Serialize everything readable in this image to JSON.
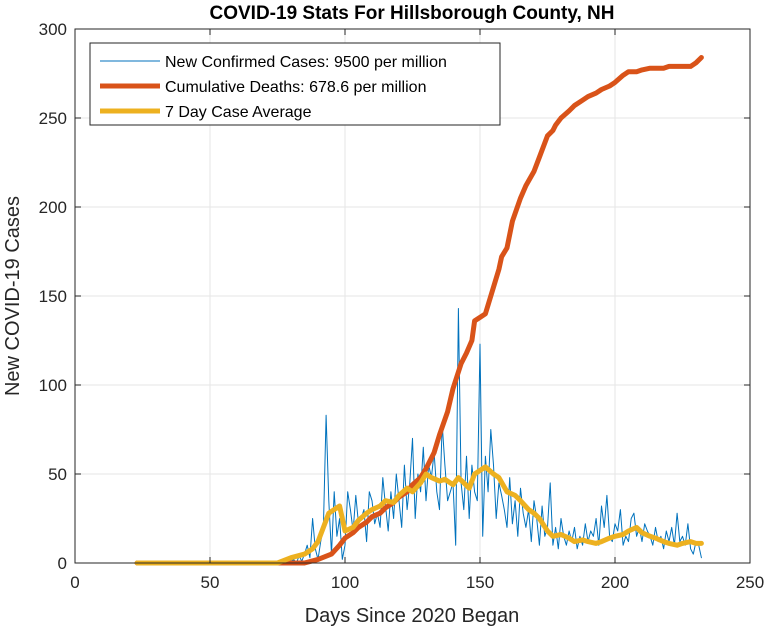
{
  "chart_data": {
    "type": "line",
    "title": "COVID-19 Stats For Hillsborough County, NH",
    "xlabel": "Days Since 2020 Began",
    "ylabel": "New COVID-19 Cases",
    "xlim": [
      0,
      250
    ],
    "ylim": [
      0,
      300
    ],
    "xticks": [
      0,
      50,
      100,
      150,
      200,
      250
    ],
    "yticks": [
      0,
      50,
      100,
      150,
      200,
      250,
      300
    ],
    "grid": true,
    "legend_position": "top-left",
    "series": [
      {
        "name": "New Confirmed Cases: 9500 per million",
        "color": "#0072BD",
        "width": 1,
        "x": [
          23,
          40,
          60,
          75,
          77,
          78,
          79,
          80,
          81,
          82,
          83,
          84,
          85,
          86,
          87,
          88,
          89,
          90,
          91,
          92,
          93,
          94,
          95,
          96,
          97,
          98,
          99,
          100,
          101,
          102,
          103,
          104,
          105,
          106,
          107,
          108,
          109,
          110,
          111,
          112,
          113,
          114,
          115,
          116,
          117,
          118,
          119,
          120,
          121,
          122,
          123,
          124,
          125,
          126,
          127,
          128,
          129,
          130,
          131,
          132,
          133,
          134,
          135,
          136,
          137,
          138,
          139,
          140,
          141,
          142,
          143,
          144,
          145,
          146,
          147,
          148,
          149,
          150,
          151,
          152,
          153,
          154,
          155,
          156,
          157,
          158,
          159,
          160,
          161,
          162,
          163,
          164,
          165,
          166,
          167,
          168,
          169,
          170,
          171,
          172,
          173,
          174,
          175,
          176,
          177,
          178,
          179,
          180,
          181,
          182,
          183,
          184,
          185,
          186,
          187,
          188,
          189,
          190,
          191,
          192,
          193,
          194,
          195,
          196,
          197,
          198,
          199,
          200,
          201,
          202,
          203,
          204,
          205,
          206,
          207,
          208,
          209,
          210,
          211,
          212,
          213,
          214,
          215,
          216,
          217,
          218,
          219,
          220,
          221,
          222,
          223,
          224,
          225,
          226,
          227,
          228,
          229,
          230,
          231,
          232
        ],
        "values": [
          0,
          0,
          0,
          0,
          2,
          0,
          3,
          1,
          2,
          0,
          4,
          1,
          5,
          10,
          3,
          25,
          8,
          2,
          12,
          20,
          83,
          35,
          5,
          40,
          15,
          25,
          2,
          10,
          40,
          30,
          18,
          38,
          22,
          25,
          30,
          12,
          40,
          35,
          22,
          28,
          20,
          48,
          32,
          18,
          40,
          25,
          50,
          35,
          20,
          55,
          30,
          45,
          70,
          25,
          50,
          40,
          65,
          35,
          55,
          48,
          62,
          40,
          30,
          78,
          55,
          35,
          40,
          45,
          10,
          143,
          45,
          30,
          60,
          25,
          55,
          40,
          35,
          123,
          15,
          60,
          40,
          75,
          55,
          25,
          45,
          38,
          30,
          20,
          48,
          22,
          35,
          15,
          42,
          28,
          20,
          30,
          12,
          35,
          25,
          10,
          32,
          15,
          20,
          45,
          10,
          20,
          8,
          25,
          15,
          10,
          18,
          12,
          20,
          8,
          15,
          10,
          22,
          12,
          18,
          15,
          25,
          10,
          32,
          20,
          38,
          15,
          12,
          22,
          18,
          30,
          10,
          15,
          12,
          25,
          28,
          15,
          20,
          12,
          22,
          18,
          15,
          10,
          20,
          12,
          15,
          8,
          18,
          12,
          20,
          10,
          28,
          12,
          15,
          10,
          22,
          8,
          5,
          12,
          10,
          3
        ],
        "_note": "x and values are paired by index"
      },
      {
        "name": "Cumulative Deaths: 678.6 per million",
        "color": "#D95319",
        "width": 5,
        "x": [
          23,
          60,
          75,
          80,
          85,
          90,
          95,
          98,
          100,
          103,
          105,
          108,
          110,
          113,
          115,
          118,
          120,
          123,
          125,
          128,
          130,
          133,
          135,
          138,
          140,
          143,
          145,
          147,
          148,
          150,
          152,
          155,
          157,
          158,
          160,
          162,
          165,
          167,
          170,
          172,
          175,
          177,
          178,
          180,
          183,
          185,
          188,
          190,
          193,
          195,
          198,
          200,
          203,
          205,
          208,
          210,
          213,
          215,
          218,
          220,
          225,
          228,
          230,
          232
        ],
        "values": [
          0,
          0,
          0,
          0,
          0,
          2,
          5,
          10,
          14,
          17,
          20,
          23,
          26,
          28,
          31,
          34,
          37,
          40,
          44,
          48,
          53,
          62,
          72,
          85,
          98,
          112,
          118,
          125,
          136,
          138,
          140,
          155,
          165,
          172,
          177,
          192,
          205,
          212,
          220,
          228,
          240,
          243,
          246,
          250,
          254,
          257,
          260,
          262,
          264,
          266,
          268,
          270,
          274,
          276,
          276,
          277,
          278,
          278,
          278,
          279,
          279,
          279,
          281,
          284
        ]
      },
      {
        "name": "7 Day Case Average",
        "color": "#EDB120",
        "width": 5,
        "x": [
          23,
          40,
          60,
          75,
          80,
          85,
          88,
          90,
          92,
          94,
          96,
          98,
          100,
          103,
          105,
          108,
          110,
          113,
          115,
          118,
          120,
          123,
          125,
          128,
          130,
          132,
          135,
          137,
          140,
          142,
          144,
          146,
          148,
          150,
          152,
          155,
          157,
          160,
          163,
          165,
          168,
          170,
          172,
          175,
          177,
          180,
          183,
          185,
          188,
          190,
          193,
          195,
          198,
          200,
          203,
          205,
          208,
          210,
          213,
          215,
          218,
          220,
          223,
          225,
          228,
          230,
          232
        ],
        "values": [
          0,
          0,
          0,
          0,
          3,
          5,
          8,
          12,
          20,
          28,
          30,
          32,
          18,
          20,
          24,
          28,
          30,
          32,
          35,
          34,
          38,
          42,
          40,
          45,
          50,
          48,
          46,
          47,
          44,
          48,
          45,
          42,
          50,
          52,
          54,
          50,
          48,
          40,
          38,
          35,
          30,
          28,
          25,
          18,
          15,
          16,
          14,
          12,
          13,
          12,
          11,
          12,
          14,
          15,
          16,
          18,
          20,
          17,
          15,
          14,
          12,
          11,
          10,
          11,
          12,
          11,
          11
        ]
      }
    ]
  }
}
